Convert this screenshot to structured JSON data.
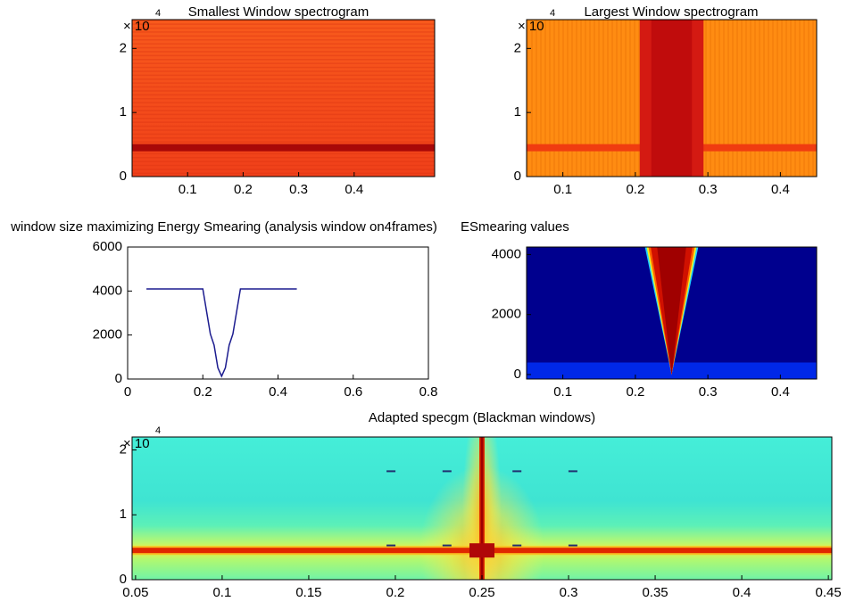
{
  "chart_data": [
    {
      "type": "heatmap",
      "title": "Smallest Window spectrogram",
      "xlim": [
        0,
        0.545
      ],
      "xticks": [
        0.1,
        0.2,
        0.3,
        0.4
      ],
      "ylim": [
        0,
        2.45
      ],
      "yticks": [
        0,
        1,
        2
      ],
      "y_multiplier": "× 10",
      "y_exponent": "4"
    },
    {
      "type": "heatmap",
      "title": "Largest Window spectrogram",
      "xlim": [
        0.05,
        0.45
      ],
      "xticks": [
        0.1,
        0.2,
        0.3,
        0.4
      ],
      "ylim": [
        0,
        2.45
      ],
      "yticks": [
        0,
        1,
        2
      ],
      "y_multiplier": "× 10",
      "y_exponent": "4"
    },
    {
      "type": "line",
      "title": "window size maximizing Energy Smearing (analysis window on4frames)",
      "xlim": [
        0,
        0.8
      ],
      "xticks": [
        0,
        0.2,
        0.4,
        0.6,
        0.8
      ],
      "ylim": [
        0,
        6000
      ],
      "yticks": [
        0,
        2000,
        4000,
        6000
      ],
      "color": "#1c1c8f",
      "x": [
        0.05,
        0.2,
        0.21,
        0.22,
        0.23,
        0.24,
        0.25,
        0.26,
        0.27,
        0.28,
        0.29,
        0.3,
        0.45
      ],
      "values": [
        4096,
        4096,
        3072,
        2048,
        1536,
        512,
        128,
        512,
        1536,
        2048,
        3072,
        4096,
        4096
      ]
    },
    {
      "type": "heatmap",
      "title": "ESmearing values",
      "xlim": [
        0.05,
        0.45
      ],
      "xticks": [
        0.1,
        0.2,
        0.3,
        0.4
      ],
      "ylim": [
        -150,
        4250
      ],
      "yticks": [
        0,
        2000,
        4000
      ]
    },
    {
      "type": "heatmap",
      "title": "Adapted specgm (Blackman windows)",
      "xlim": [
        0.048,
        0.452
      ],
      "xticks": [
        0.05,
        0.1,
        0.15,
        0.2,
        0.25,
        0.3,
        0.35,
        0.4,
        0.45
      ],
      "ylim": [
        0,
        2.2
      ],
      "yticks": [
        0,
        1,
        2
      ],
      "y_multiplier": "× 10",
      "y_exponent": "4"
    }
  ]
}
